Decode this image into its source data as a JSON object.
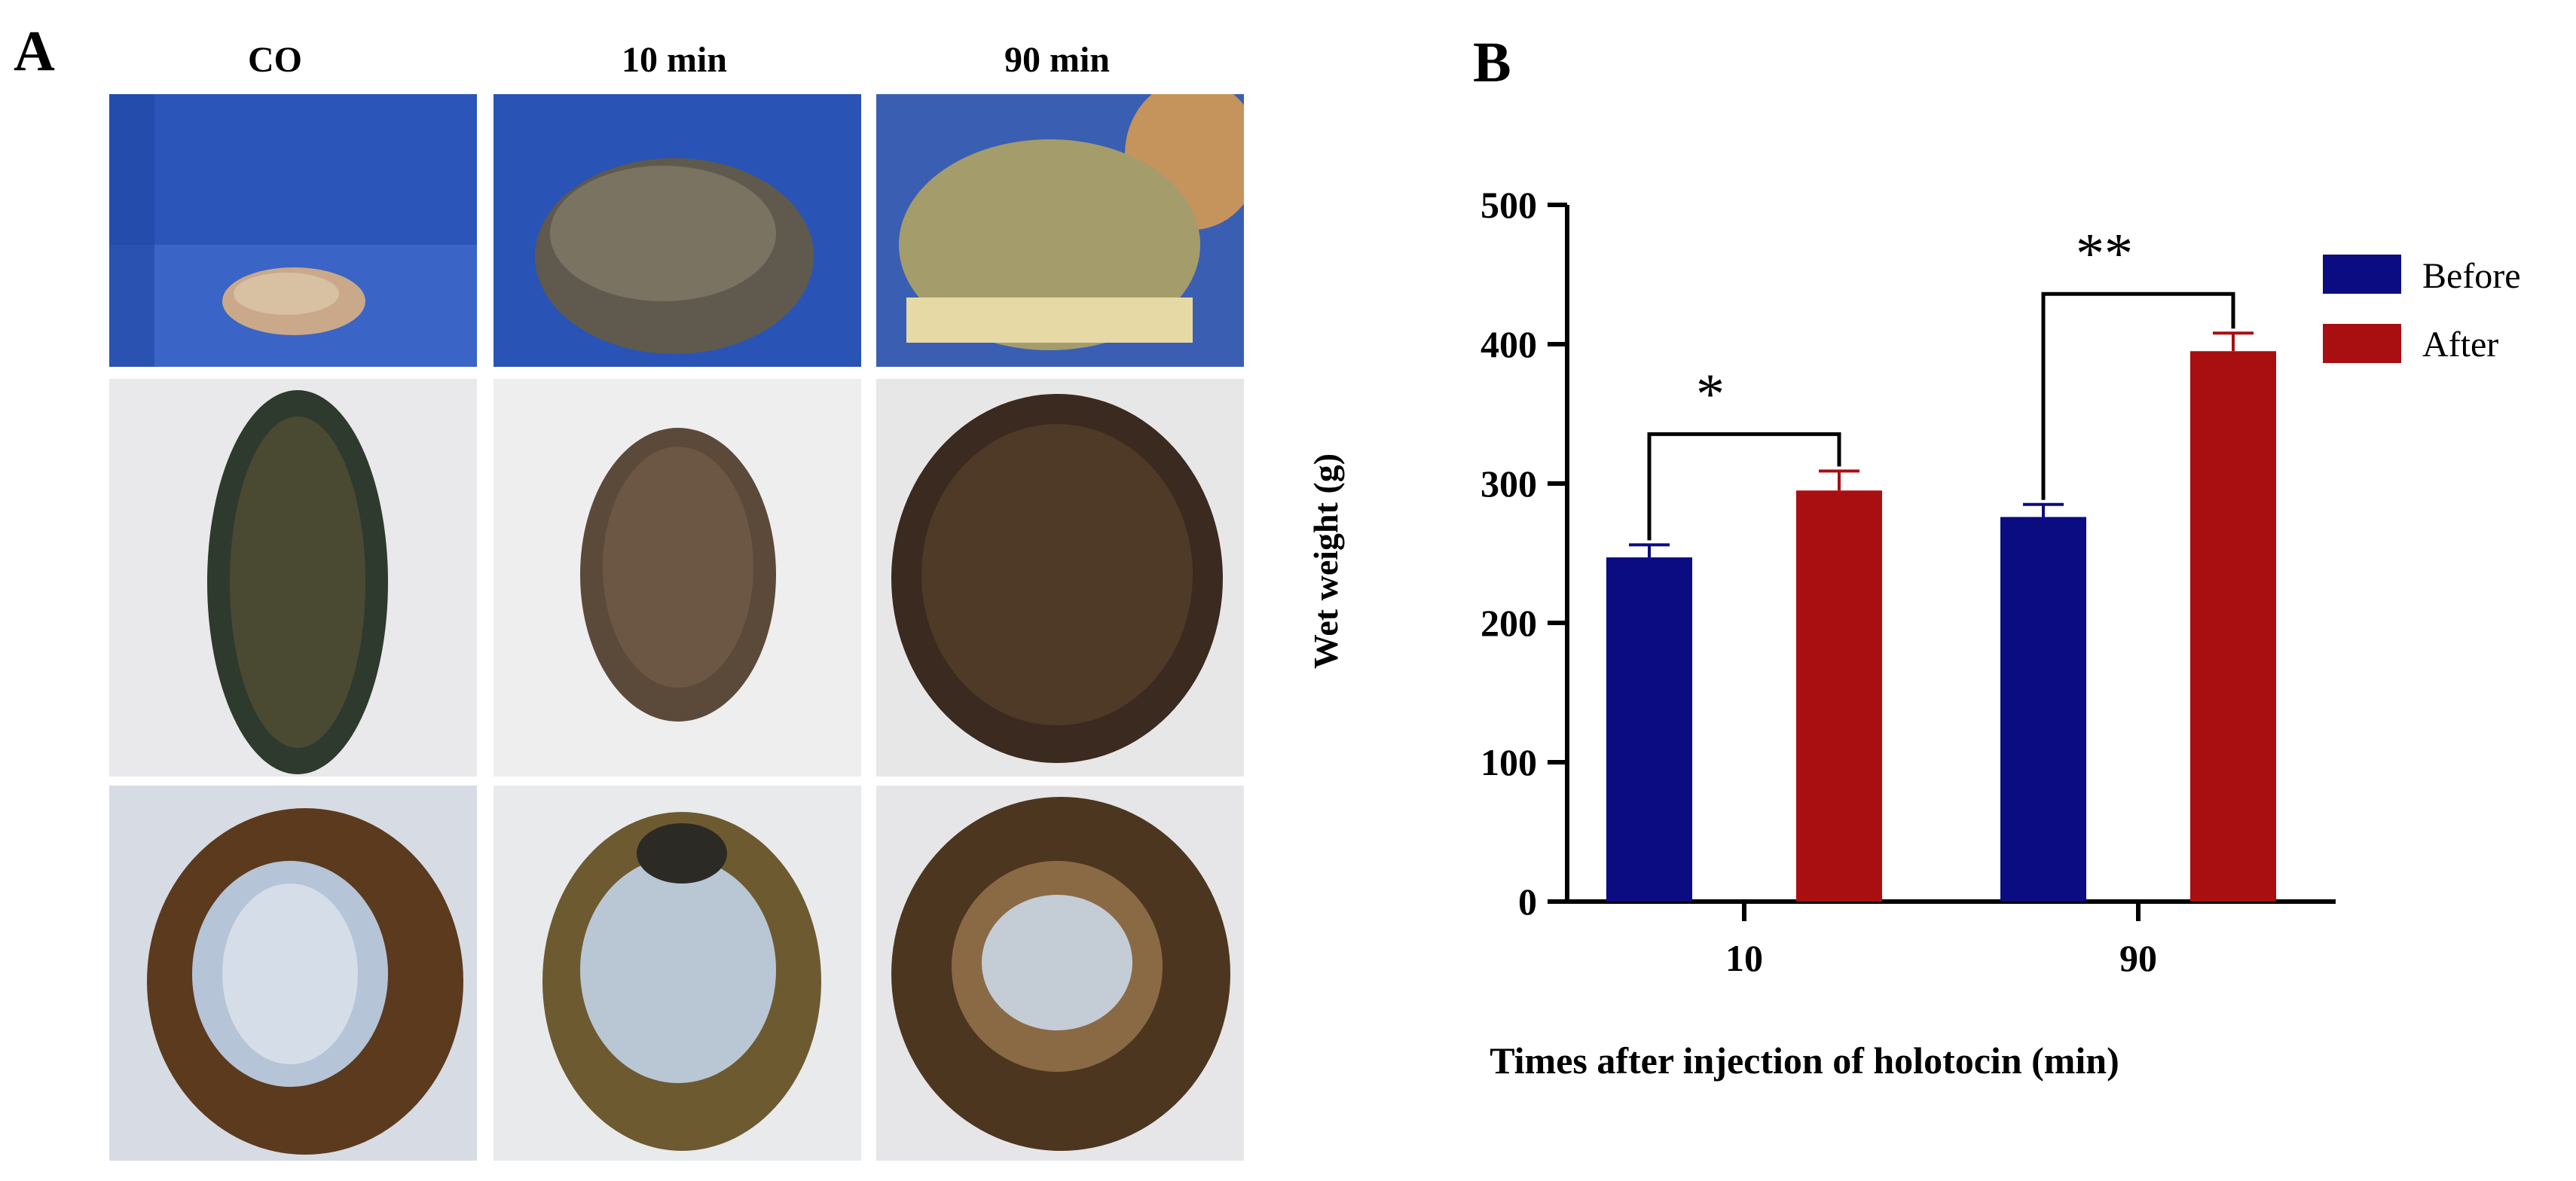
{
  "panel_a": {
    "label": "A",
    "columns": [
      "CO",
      "10 min",
      "90 min"
    ]
  },
  "panel_b": {
    "label": "B"
  },
  "colors": {
    "before": "#0b0b82",
    "after": "#a90e10"
  },
  "chart_data": {
    "type": "bar",
    "title": "",
    "xlabel": "Times after injection of holotocin (min)",
    "ylabel": "Wet weight (g)",
    "categories": [
      "10",
      "90"
    ],
    "ylim": [
      0,
      500
    ],
    "yticks": [
      0,
      100,
      200,
      300,
      400,
      500
    ],
    "legend_position": "top-right",
    "series": [
      {
        "name": "Before",
        "values": [
          247,
          276
        ],
        "errors": [
          9,
          9
        ]
      },
      {
        "name": "After",
        "values": [
          295,
          395
        ],
        "errors": [
          14,
          13
        ]
      }
    ],
    "annotations": [
      {
        "category": "10",
        "text": "*"
      },
      {
        "category": "90",
        "text": "**"
      }
    ]
  }
}
